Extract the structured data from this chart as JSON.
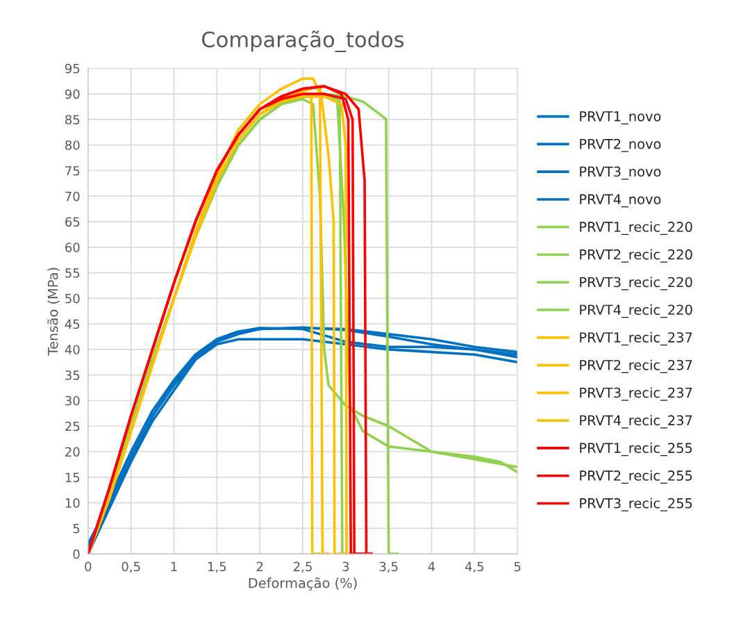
{
  "chart_data": {
    "type": "line",
    "title": "Comparação_todos",
    "xlabel": "Deformação (%)",
    "ylabel": "Tensão (MPa)",
    "xlim": [
      0,
      5
    ],
    "ylim": [
      0,
      95
    ],
    "xticks": [
      0,
      {
        "value": 0.5,
        "label": "0,5"
      },
      1,
      {
        "value": 1.5,
        "label": "1,5"
      },
      2,
      {
        "value": 2.5,
        "label": "2,5"
      },
      3,
      {
        "value": 3.5,
        "label": "3,5"
      },
      4,
      {
        "value": 4.5,
        "label": "4,5"
      },
      5
    ],
    "yticks": [
      0,
      5,
      10,
      15,
      20,
      25,
      30,
      35,
      40,
      45,
      50,
      55,
      60,
      65,
      70,
      75,
      80,
      85,
      90,
      95
    ],
    "grid": true,
    "legend": "right",
    "marker": "none",
    "line_style": "solid",
    "series": [
      {
        "name": "PRVT1_novo",
        "color": "#0070c0",
        "x": [
          0,
          0.25,
          0.5,
          0.75,
          1,
          1.25,
          1.5,
          1.75,
          2,
          2.5,
          3,
          3.5,
          4,
          4.5,
          5
        ],
        "values": [
          2,
          10,
          19,
          27,
          33,
          38,
          41,
          42,
          42,
          42,
          41,
          40,
          39.5,
          39,
          37.5
        ]
      },
      {
        "name": "PRVT2_novo",
        "color": "#0070c0",
        "x": [
          0,
          0.25,
          0.5,
          0.75,
          1,
          1.25,
          1.5,
          1.75,
          2,
          2.5,
          3,
          3.5,
          4,
          4.5,
          5
        ],
        "values": [
          0,
          9,
          18,
          26,
          32,
          38,
          41.5,
          43,
          44,
          44.2,
          44,
          43,
          42,
          40.5,
          39.5
        ]
      },
      {
        "name": "PRVT3_novo",
        "color": "#0070c0",
        "x": [
          0,
          0.25,
          0.5,
          0.75,
          1,
          1.25,
          1.5,
          1.75,
          2,
          2.5,
          3,
          3.5,
          4,
          4.5,
          5
        ],
        "values": [
          1,
          11,
          20,
          28,
          34,
          39,
          42,
          43.5,
          44,
          44.3,
          43.8,
          42.5,
          41,
          40,
          38.5
        ]
      },
      {
        "name": "PRVT4_novo",
        "color": "#0070c0",
        "x": [
          0,
          0.25,
          0.5,
          0.75,
          1,
          1.25,
          1.5,
          1.75,
          2,
          2.5,
          3,
          3.5,
          4,
          4.5,
          5
        ],
        "values": [
          0,
          9.5,
          18.5,
          27,
          33.5,
          38.5,
          42,
          43.5,
          44.2,
          44,
          41.5,
          40.5,
          40.5,
          40,
          39
        ]
      },
      {
        "name": "PRVT1_recic_220",
        "color": "#92d050",
        "x": [
          0,
          0.25,
          0.5,
          0.75,
          1,
          1.25,
          1.5,
          1.75,
          2,
          2.25,
          2.5,
          2.62,
          2.7,
          2.75,
          2.8,
          3,
          3.2,
          3.5,
          4,
          4.5,
          5
        ],
        "values": [
          0,
          12,
          25,
          38,
          50,
          62,
          72,
          80,
          85,
          88,
          89,
          88,
          70,
          40,
          33,
          29,
          27,
          25,
          20,
          18.5,
          17
        ]
      },
      {
        "name": "PRVT2_recic_220",
        "color": "#92d050",
        "x": [
          0,
          0.25,
          0.5,
          0.75,
          1,
          1.25,
          1.5,
          1.75,
          2,
          2.25,
          2.5,
          2.75,
          2.9,
          2.98,
          3.05,
          3.2,
          3.5,
          4,
          4.5,
          4.8,
          5
        ],
        "values": [
          0,
          12,
          25,
          38,
          50,
          62,
          72,
          80,
          85,
          88,
          89.5,
          89.5,
          89,
          65,
          29,
          24,
          21,
          20,
          19,
          18,
          16
        ]
      },
      {
        "name": "PRVT3_recic_220",
        "color": "#92d050",
        "x": [
          0,
          0.25,
          0.5,
          0.75,
          1,
          1.25,
          1.5,
          1.75,
          2,
          2.25,
          2.5,
          2.75,
          3,
          3.2,
          3.4,
          3.47,
          3.5,
          3.6
        ],
        "values": [
          0,
          12,
          25,
          38,
          50,
          62,
          72,
          80,
          85,
          88,
          89.5,
          90,
          89.5,
          88.5,
          86,
          85,
          0,
          0
        ]
      },
      {
        "name": "PRVT4_recic_220",
        "color": "#92d050",
        "x": [
          0,
          0.25,
          0.5,
          0.75,
          1,
          1.25,
          1.5,
          1.75,
          2,
          2.25,
          2.5,
          2.75,
          2.93,
          2.96,
          3.1
        ],
        "values": [
          0,
          12,
          25,
          38,
          50,
          62,
          72,
          80,
          85,
          88,
          89.5,
          90,
          89,
          0,
          0
        ]
      },
      {
        "name": "PRVT1_recic_237",
        "color": "#ffc000",
        "x": [
          0,
          0.25,
          0.5,
          0.75,
          1,
          1.25,
          1.5,
          1.75,
          2,
          2.25,
          2.5,
          2.6,
          2.61,
          2.7
        ],
        "values": [
          0,
          11,
          24,
          37,
          50,
          62,
          73,
          81,
          86,
          88.5,
          89.5,
          89.5,
          0,
          0
        ]
      },
      {
        "name": "PRVT2_recic_237",
        "color": "#ffc000",
        "x": [
          0,
          0.25,
          0.5,
          0.75,
          1,
          1.25,
          1.5,
          1.75,
          2,
          2.25,
          2.5,
          2.62,
          2.7,
          2.73,
          2.8
        ],
        "values": [
          0,
          11,
          24,
          37,
          50,
          63,
          74,
          83,
          88,
          91,
          93,
          93,
          90,
          0,
          0
        ]
      },
      {
        "name": "PRVT3_recic_237",
        "color": "#ffc000",
        "x": [
          0,
          0.25,
          0.5,
          0.75,
          1,
          1.25,
          1.5,
          1.75,
          2,
          2.25,
          2.5,
          2.7,
          2.75,
          2.8,
          2.86,
          2.87,
          3.0
        ],
        "values": [
          0,
          11,
          24,
          37,
          50,
          62,
          73,
          81,
          86,
          89,
          90.5,
          91.5,
          85,
          78,
          65,
          0,
          0
        ]
      },
      {
        "name": "PRVT4_recic_237",
        "color": "#ffc000",
        "x": [
          0,
          0.25,
          0.5,
          0.75,
          1,
          1.25,
          1.5,
          1.75,
          2,
          2.25,
          2.5,
          2.75,
          2.95,
          3.0,
          3.01,
          3.1
        ],
        "values": [
          0,
          11,
          24,
          37,
          50,
          62,
          73,
          81,
          86,
          88.5,
          89.5,
          89.5,
          88,
          80,
          0,
          0
        ]
      },
      {
        "name": "PRVT1_recic_255",
        "color": "#ff0000",
        "x": [
          0,
          0.25,
          0.5,
          0.75,
          1,
          1.25,
          1.5,
          1.75,
          2,
          2.25,
          2.5,
          2.75,
          2.95,
          3.03,
          3.06,
          3.3
        ],
        "values": [
          0,
          13,
          27,
          40,
          53,
          65,
          75,
          82,
          87,
          89.5,
          91,
          91.5,
          90,
          85,
          0,
          0
        ]
      },
      {
        "name": "PRVT2_recic_255",
        "color": "#ff0000",
        "x": [
          0,
          0.25,
          0.5,
          0.75,
          1,
          1.25,
          1.5,
          1.75,
          2,
          2.25,
          2.5,
          2.75,
          3,
          3.08,
          3.1,
          3.3
        ],
        "values": [
          0,
          13,
          27,
          40,
          53,
          65,
          75,
          82,
          87,
          89,
          90,
          90,
          89,
          85,
          0,
          0
        ]
      },
      {
        "name": "PRVT3_recic_255",
        "color": "#ff0000",
        "x": [
          0,
          0.25,
          0.5,
          0.75,
          1,
          1.25,
          1.5,
          1.75,
          2,
          2.25,
          2.5,
          2.75,
          3,
          3.15,
          3.22,
          3.24,
          3.3
        ],
        "values": [
          0,
          13,
          27,
          40,
          53,
          65,
          75,
          82,
          87,
          89.5,
          91,
          91.5,
          90,
          87,
          73,
          0,
          0
        ]
      }
    ]
  }
}
